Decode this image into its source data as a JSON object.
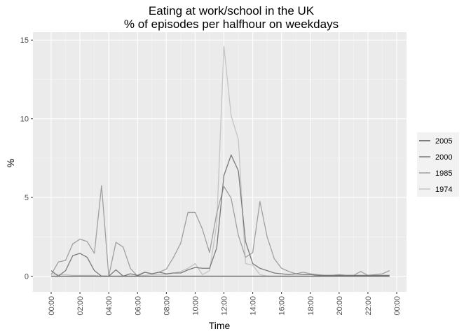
{
  "chart_data": {
    "type": "line",
    "title": "Eating at work/school in the UK",
    "subtitle": "% of episodes per halfhour on weekdays",
    "xlabel": "Time",
    "ylabel": "%",
    "ylim": [
      -1.0,
      15.5
    ],
    "yticks": [
      0,
      5,
      10,
      15
    ],
    "xticks": [
      "00:00",
      "02:00",
      "04:00",
      "06:00",
      "08:00",
      "10:00",
      "12:00",
      "14:00",
      "16:00",
      "18:00",
      "20:00",
      "22:00",
      "00:00"
    ],
    "legend_position": "right",
    "grid": true,
    "series": [
      {
        "name": "2005",
        "color": "#555555",
        "values": [
          0,
          0,
          0,
          0,
          0,
          0,
          0,
          0,
          0,
          0,
          0,
          0,
          0,
          0,
          0,
          0,
          0,
          0,
          0,
          0,
          0,
          0,
          0,
          0,
          0,
          0,
          0,
          0,
          0,
          0,
          0,
          0,
          0,
          0,
          0,
          0,
          0,
          0,
          0,
          0,
          0,
          0,
          0,
          0,
          0,
          0,
          0,
          0
        ]
      },
      {
        "name": "2000",
        "color": "#7a7a7a",
        "values": [
          0.35,
          0,
          0.35,
          1.3,
          1.45,
          1.2,
          0.35,
          0,
          0,
          0.4,
          0,
          0.15,
          0.05,
          0.25,
          0.15,
          0.25,
          0.15,
          0.2,
          0.2,
          0.4,
          0.55,
          0.5,
          0.5,
          1.8,
          6.4,
          7.7,
          6.7,
          2.2,
          0.8,
          0.5,
          0.35,
          0.2,
          0.15,
          0.1,
          0.15,
          0.1,
          0.1,
          0.05,
          0.05,
          0.05,
          0.05,
          0.05,
          0.05,
          0.05,
          0.05,
          0.05,
          0.05,
          0.05
        ]
      },
      {
        "name": "1985",
        "color": "#a0a0a0",
        "values": [
          0.1,
          0.9,
          1.0,
          2.05,
          2.35,
          2.2,
          1.45,
          5.75,
          0,
          2.15,
          1.85,
          0.5,
          0,
          0.25,
          0.15,
          0.25,
          0.45,
          1.2,
          2.1,
          4.05,
          4.05,
          3.0,
          1.5,
          4.0,
          5.7,
          4.95,
          2.6,
          1.2,
          1.5,
          4.75,
          2.5,
          1.1,
          0.5,
          0.3,
          0.15,
          0.25,
          0.15,
          0.1,
          0.05,
          0.05,
          0.1,
          0.05,
          0.05,
          0.3,
          0.05,
          0.1,
          0.15,
          0.35
        ]
      },
      {
        "name": "1974",
        "color": "#c4c4c4",
        "values": [
          0.15,
          0.1,
          0.1,
          0.05,
          0.05,
          0.05,
          0.05,
          0,
          0,
          0,
          0,
          0,
          0,
          0.05,
          0.1,
          0.1,
          0.1,
          0.2,
          0.3,
          0.5,
          0.8,
          0.1,
          0.35,
          3.3,
          14.6,
          10.2,
          8.7,
          0.8,
          0.7,
          0.1,
          0,
          0,
          0,
          0,
          0,
          0,
          0,
          0,
          0,
          0,
          0,
          0,
          0,
          0,
          0,
          0,
          0,
          0
        ]
      }
    ]
  }
}
